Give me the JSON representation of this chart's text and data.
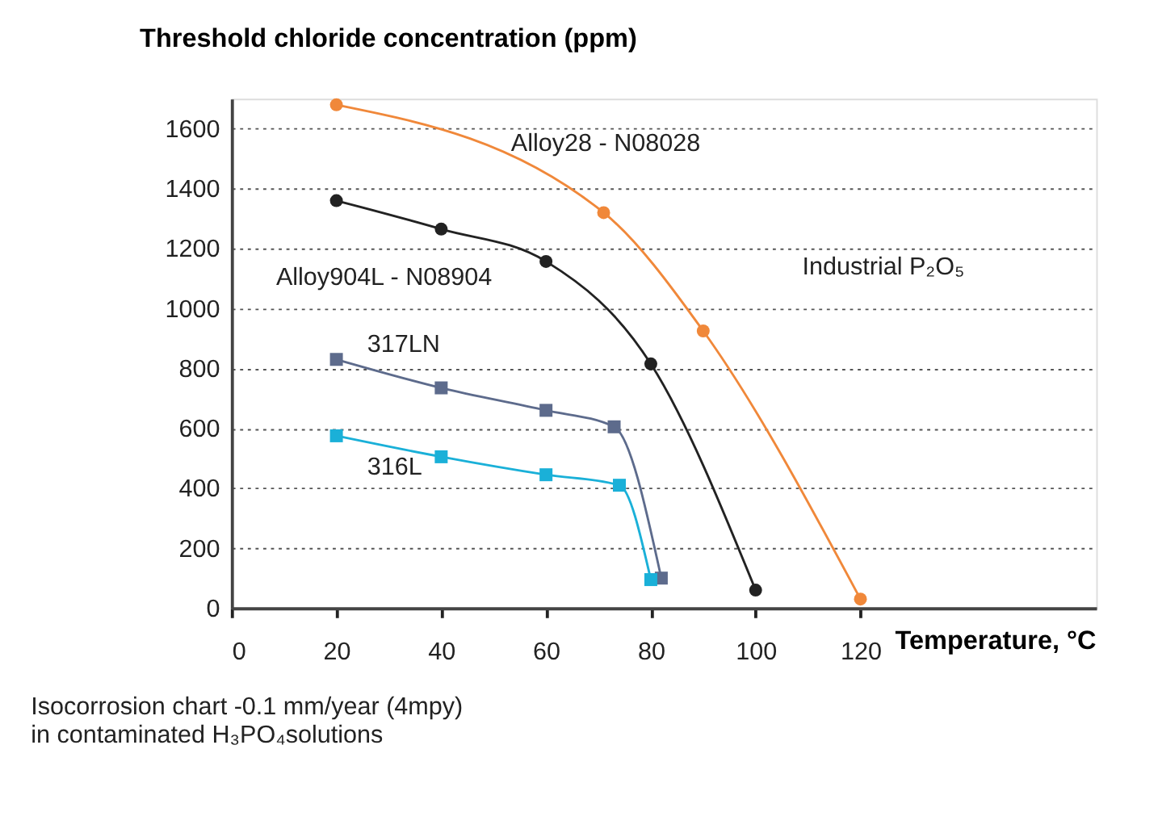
{
  "chart_data": {
    "type": "line",
    "ylabel": "Threshold chloride concentration (ppm)",
    "xlabel": "Temperature, °C",
    "xlim": [
      0,
      165
    ],
    "xticks": [
      0,
      20,
      40,
      60,
      80,
      100,
      120
    ],
    "ylim": [
      0,
      1700
    ],
    "yticks": [
      0,
      200,
      400,
      600,
      800,
      1000,
      1200,
      1400,
      1600
    ],
    "grid": "y",
    "line_style": "solid",
    "series": [
      {
        "name": "Alloy28 - N08028",
        "color": "#f0883a",
        "marker": "circle",
        "x": [
          20,
          71,
          90,
          120
        ],
        "values": [
          1680,
          1320,
          925,
          30
        ]
      },
      {
        "name": "Alloy904L - N08904",
        "color": "#222222",
        "marker": "circle",
        "x": [
          20,
          40,
          60,
          80,
          100
        ],
        "values": [
          1360,
          1265,
          1157,
          815,
          60
        ]
      },
      {
        "name": "317LN",
        "color": "#5d6b8c",
        "marker": "square",
        "x": [
          20,
          40,
          60,
          73,
          82
        ],
        "values": [
          830,
          735,
          660,
          605,
          100
        ]
      },
      {
        "name": "316L",
        "color": "#1ab0d8",
        "marker": "square",
        "x": [
          20,
          40,
          60,
          74,
          80
        ],
        "values": [
          575,
          505,
          445,
          410,
          95
        ]
      }
    ],
    "annotations": [
      "Industrial P₂O₅",
      "Isocorrosion chart -0.1 mm/year (4mpy)",
      "in contaminated H₃PO₄solutions"
    ]
  }
}
